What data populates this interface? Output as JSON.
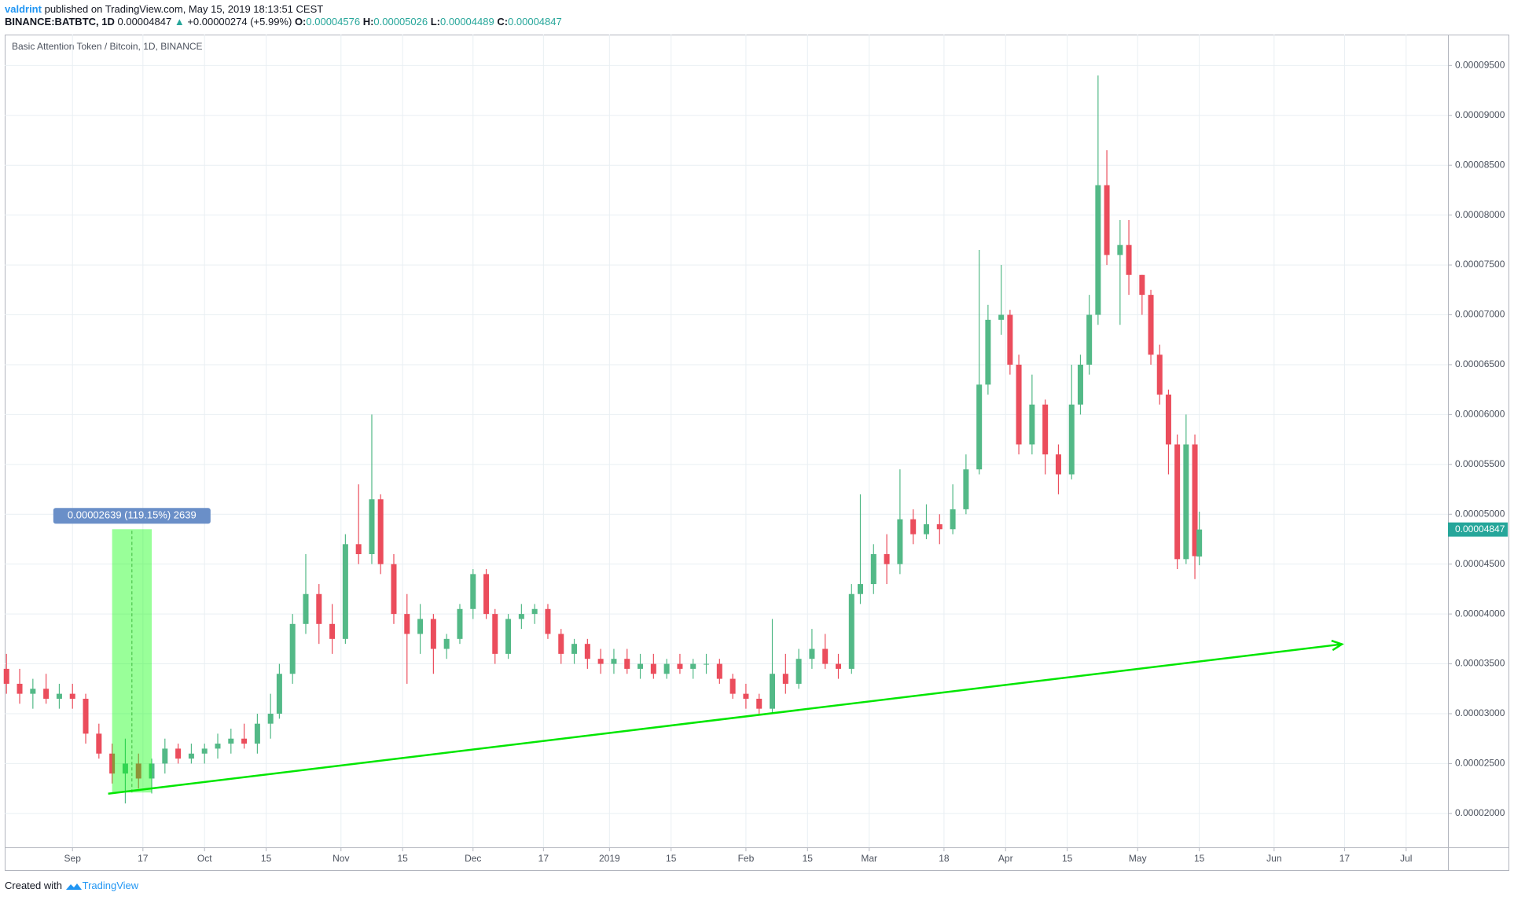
{
  "header": {
    "author": "valdrint",
    "published": "published on TradingView.com, May 15, 2019 18:13:51 CEST",
    "symbol": "BINANCE:BATBTC, 1D",
    "last": "0.00004847",
    "arrow": "▲",
    "change": "+0.00000274 (+5.99%)",
    "ohlc": [
      {
        "label": "O:",
        "value": "0.00004576"
      },
      {
        "label": "H:",
        "value": "0.00005026"
      },
      {
        "label": "L:",
        "value": "0.00004489"
      },
      {
        "label": "C:",
        "value": "0.00004847"
      }
    ]
  },
  "chart_data": {
    "type": "candlestick",
    "title": "Basic Attention Token / Bitcoin, 1D, BINANCE",
    "up_color": "#53b987",
    "down_color": "#eb4d5c",
    "grid": true,
    "xlim": [
      -15.4,
      312.5
    ],
    "ylim": [
      1.66e-05,
      9.81e-05
    ],
    "xticks": [
      {
        "value": 0,
        "label": "Sep"
      },
      {
        "value": 16,
        "label": "17"
      },
      {
        "value": 30,
        "label": "Oct"
      },
      {
        "value": 44,
        "label": "15"
      },
      {
        "value": 61,
        "label": "Nov"
      },
      {
        "value": 75,
        "label": "15"
      },
      {
        "value": 91,
        "label": "Dec"
      },
      {
        "value": 107,
        "label": "17"
      },
      {
        "value": 122,
        "label": "2019"
      },
      {
        "value": 136,
        "label": "15"
      },
      {
        "value": 153,
        "label": "Feb"
      },
      {
        "value": 167,
        "label": "15"
      },
      {
        "value": 181,
        "label": "Mar"
      },
      {
        "value": 198,
        "label": "18"
      },
      {
        "value": 212,
        "label": "Apr"
      },
      {
        "value": 226,
        "label": "15"
      },
      {
        "value": 242,
        "label": "May"
      },
      {
        "value": 256,
        "label": "15"
      },
      {
        "value": 273,
        "label": "Jun"
      },
      {
        "value": 289,
        "label": "17"
      },
      {
        "value": 303,
        "label": "Jul"
      }
    ],
    "yticks": [
      {
        "value": 2e-05,
        "label": "0.00002000"
      },
      {
        "value": 2.5e-05,
        "label": "0.00002500"
      },
      {
        "value": 3e-05,
        "label": "0.00003000"
      },
      {
        "value": 3.5e-05,
        "label": "0.00003500"
      },
      {
        "value": 4e-05,
        "label": "0.00004000"
      },
      {
        "value": 4.5e-05,
        "label": "0.00004500"
      },
      {
        "value": 5e-05,
        "label": "0.00005000"
      },
      {
        "value": 5.5e-05,
        "label": "0.00005500"
      },
      {
        "value": 6e-05,
        "label": "0.00006000"
      },
      {
        "value": 6.5e-05,
        "label": "0.00006500"
      },
      {
        "value": 7e-05,
        "label": "0.00007000"
      },
      {
        "value": 7.5e-05,
        "label": "0.00007500"
      },
      {
        "value": 8e-05,
        "label": "0.00008000"
      },
      {
        "value": 8.5e-05,
        "label": "0.00008500"
      },
      {
        "value": 9e-05,
        "label": "0.00009000"
      },
      {
        "value": 9.5e-05,
        "label": "0.00009500"
      }
    ],
    "x": [
      -15,
      -12,
      -9,
      -6,
      -3,
      0,
      3,
      6,
      9,
      12,
      15,
      18,
      21,
      24,
      27,
      30,
      33,
      36,
      39,
      42,
      45,
      47,
      50,
      53,
      56,
      59,
      62,
      65,
      68,
      70,
      73,
      76,
      79,
      82,
      85,
      88,
      91,
      94,
      96,
      99,
      102,
      105,
      108,
      111,
      114,
      117,
      120,
      123,
      126,
      129,
      132,
      135,
      138,
      141,
      144,
      147,
      150,
      153,
      156,
      159,
      162,
      165,
      168,
      171,
      174,
      177,
      179,
      182,
      185,
      188,
      191,
      194,
      197,
      200,
      203,
      206,
      208,
      211,
      213,
      215,
      218,
      221,
      224,
      227,
      229,
      231,
      233,
      235,
      238,
      240,
      243,
      245,
      247,
      249,
      251,
      253,
      255,
      256
    ],
    "open": [
      3.45e-05,
      3.3e-05,
      3.2e-05,
      3.25e-05,
      3.15e-05,
      3.2e-05,
      3.15e-05,
      2.8e-05,
      2.6e-05,
      2.4e-05,
      2.5e-05,
      2.35e-05,
      2.5e-05,
      2.65e-05,
      2.55e-05,
      2.6e-05,
      2.65e-05,
      2.7e-05,
      2.75e-05,
      2.7e-05,
      2.9e-05,
      3e-05,
      3.4e-05,
      3.9e-05,
      4.2e-05,
      3.9e-05,
      3.75e-05,
      4.7e-05,
      4.6e-05,
      5.15e-05,
      4.5e-05,
      4e-05,
      3.8e-05,
      3.95e-05,
      3.65e-05,
      3.75e-05,
      4.05e-05,
      4.4e-05,
      4e-05,
      3.6e-05,
      3.95e-05,
      4e-05,
      4.05e-05,
      3.8e-05,
      3.6e-05,
      3.7e-05,
      3.55e-05,
      3.5e-05,
      3.55e-05,
      3.45e-05,
      3.5e-05,
      3.4e-05,
      3.5e-05,
      3.45e-05,
      3.5e-05,
      3.5e-05,
      3.35e-05,
      3.2e-05,
      3.15e-05,
      3.05e-05,
      3.4e-05,
      3.3e-05,
      3.55e-05,
      3.65e-05,
      3.5e-05,
      3.45e-05,
      4.2e-05,
      4.3e-05,
      4.6e-05,
      4.5e-05,
      4.95e-05,
      4.8e-05,
      4.9e-05,
      4.85e-05,
      5.05e-05,
      5.45e-05,
      6.3e-05,
      6.95e-05,
      7e-05,
      6.5e-05,
      5.7e-05,
      6.1e-05,
      5.6e-05,
      5.4e-05,
      6.1e-05,
      6.5e-05,
      7e-05,
      8.3e-05,
      7.6e-05,
      7.7e-05,
      7.4e-05,
      7.2e-05,
      6.6e-05,
      6.2e-05,
      5.7e-05,
      4.55e-05,
      5.7e-05,
      4.576e-05
    ],
    "high": [
      3.6e-05,
      3.45e-05,
      3.35e-05,
      3.4e-05,
      3.3e-05,
      3.3e-05,
      3.2e-05,
      2.9e-05,
      2.7e-05,
      2.75e-05,
      2.6e-05,
      2.55e-05,
      2.75e-05,
      2.7e-05,
      2.7e-05,
      2.7e-05,
      2.8e-05,
      2.85e-05,
      2.9e-05,
      3e-05,
      3.2e-05,
      3.5e-05,
      4e-05,
      4.6e-05,
      4.3e-05,
      4.1e-05,
      4.8e-05,
      5.3e-05,
      6e-05,
      5.2e-05,
      4.6e-05,
      4.2e-05,
      4.1e-05,
      4e-05,
      3.8e-05,
      4.1e-05,
      4.45e-05,
      4.45e-05,
      4.05e-05,
      4e-05,
      4.1e-05,
      4.1e-05,
      4.1e-05,
      3.85e-05,
      3.75e-05,
      3.75e-05,
      3.65e-05,
      3.65e-05,
      3.65e-05,
      3.6e-05,
      3.6e-05,
      3.55e-05,
      3.6e-05,
      3.55e-05,
      3.6e-05,
      3.55e-05,
      3.4e-05,
      3.3e-05,
      3.2e-05,
      3.95e-05,
      3.6e-05,
      3.65e-05,
      3.85e-05,
      3.8e-05,
      3.6e-05,
      4.3e-05,
      5.2e-05,
      4.7e-05,
      4.8e-05,
      5.45e-05,
      5.05e-05,
      5.1e-05,
      5e-05,
      5.3e-05,
      5.6e-05,
      7.65e-05,
      7.1e-05,
      7.5e-05,
      7.05e-05,
      6.6e-05,
      6.4e-05,
      6.15e-05,
      5.7e-05,
      6.5e-05,
      6.6e-05,
      7.2e-05,
      9.4e-05,
      8.65e-05,
      7.95e-05,
      7.95e-05,
      7.4e-05,
      7.25e-05,
      6.7e-05,
      6.25e-05,
      5.8e-05,
      6e-05,
      5.8e-05,
      5.026e-05
    ],
    "low": [
      3.2e-05,
      3.1e-05,
      3.05e-05,
      3.1e-05,
      3.05e-05,
      3.05e-05,
      2.7e-05,
      2.55e-05,
      2.3e-05,
      2.1e-05,
      2.25e-05,
      2.2e-05,
      2.4e-05,
      2.5e-05,
      2.5e-05,
      2.5e-05,
      2.55e-05,
      2.6e-05,
      2.65e-05,
      2.6e-05,
      2.75e-05,
      2.95e-05,
      3.3e-05,
      3.8e-05,
      3.7e-05,
      3.6e-05,
      3.7e-05,
      4.5e-05,
      4.5e-05,
      4.4e-05,
      3.9e-05,
      3.3e-05,
      3.6e-05,
      3.4e-05,
      3.55e-05,
      3.7e-05,
      3.95e-05,
      3.95e-05,
      3.5e-05,
      3.55e-05,
      3.85e-05,
      3.9e-05,
      3.75e-05,
      3.5e-05,
      3.5e-05,
      3.45e-05,
      3.4e-05,
      3.4e-05,
      3.4e-05,
      3.35e-05,
      3.35e-05,
      3.35e-05,
      3.4e-05,
      3.35e-05,
      3.4e-05,
      3.3e-05,
      3.15e-05,
      3.05e-05,
      3e-05,
      3e-05,
      3.2e-05,
      3.25e-05,
      3.45e-05,
      3.45e-05,
      3.35e-05,
      3.4e-05,
      4.1e-05,
      4.2e-05,
      4.3e-05,
      4.4e-05,
      4.7e-05,
      4.75e-05,
      4.7e-05,
      4.8e-05,
      5e-05,
      5.4e-05,
      6.2e-05,
      6.8e-05,
      6.4e-05,
      5.6e-05,
      5.6e-05,
      5.4e-05,
      5.2e-05,
      5.35e-05,
      6e-05,
      6.4e-05,
      6.9e-05,
      7.5e-05,
      6.9e-05,
      7.2e-05,
      7e-05,
      6.5e-05,
      6.1e-05,
      5.4e-05,
      4.45e-05,
      4.5e-05,
      4.35e-05,
      4.489e-05
    ],
    "close": [
      3.3e-05,
      3.2e-05,
      3.25e-05,
      3.15e-05,
      3.2e-05,
      3.15e-05,
      2.8e-05,
      2.6e-05,
      2.4e-05,
      2.5e-05,
      2.35e-05,
      2.5e-05,
      2.65e-05,
      2.55e-05,
      2.6e-05,
      2.65e-05,
      2.7e-05,
      2.75e-05,
      2.7e-05,
      2.9e-05,
      3e-05,
      3.4e-05,
      3.9e-05,
      4.2e-05,
      3.9e-05,
      3.75e-05,
      4.7e-05,
      4.6e-05,
      5.15e-05,
      4.5e-05,
      4e-05,
      3.8e-05,
      3.95e-05,
      3.65e-05,
      3.75e-05,
      4.05e-05,
      4.4e-05,
      4e-05,
      3.6e-05,
      3.95e-05,
      4e-05,
      4.05e-05,
      3.8e-05,
      3.6e-05,
      3.7e-05,
      3.55e-05,
      3.5e-05,
      3.55e-05,
      3.45e-05,
      3.5e-05,
      3.4e-05,
      3.5e-05,
      3.45e-05,
      3.5e-05,
      3.5e-05,
      3.35e-05,
      3.2e-05,
      3.15e-05,
      3.05e-05,
      3.4e-05,
      3.3e-05,
      3.55e-05,
      3.65e-05,
      3.5e-05,
      3.45e-05,
      4.2e-05,
      4.3e-05,
      4.6e-05,
      4.5e-05,
      4.95e-05,
      4.8e-05,
      4.9e-05,
      4.85e-05,
      5.05e-05,
      5.45e-05,
      6.3e-05,
      6.95e-05,
      7e-05,
      6.5e-05,
      5.7e-05,
      6.1e-05,
      5.6e-05,
      5.4e-05,
      6.1e-05,
      6.5e-05,
      7e-05,
      8.3e-05,
      7.6e-05,
      7.7e-05,
      7.4e-05,
      7.2e-05,
      6.6e-05,
      6.2e-05,
      5.7e-05,
      4.55e-05,
      5.7e-05,
      4.58e-05,
      4.847e-05
    ],
    "last_price": {
      "value": 4.847e-05,
      "label": "0.00004847"
    },
    "measure": {
      "x": [
        9,
        18
      ],
      "y": [
        2.21e-05,
        4.85e-05
      ],
      "label": "0.00002639 (119.15%) 2639",
      "color": "#00ff00"
    },
    "trendline": {
      "x": [
        8.1,
        288.4
      ],
      "y": [
        2.198e-05,
        3.697e-05
      ],
      "color": "#00e600"
    }
  },
  "footer": {
    "text": "Created with",
    "brand": "TradingView"
  }
}
